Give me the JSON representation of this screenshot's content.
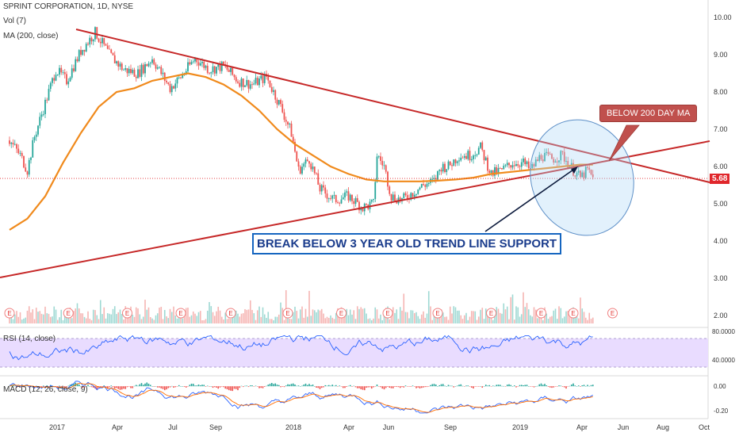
{
  "header": {
    "symbol_line": "SPRINT CORPORATION, 1D, NYSE",
    "vol_label": "Vol (7)",
    "ma_label": "MA (200, close)",
    "rsi_label": "RSI (14, close)",
    "macd_label": "MACD (12, 26, close, 9)"
  },
  "annotations": {
    "trendline_box": "BREAK BELOW 3 YEAR OLD TREND LINE SUPPORT",
    "ma_callout": "BELOW 200 DAY MA",
    "price_tag": "5.68"
  },
  "colors": {
    "up": "#26a69a",
    "down": "#ef5350",
    "ma": "#f08a1c",
    "trendline": "#c62828",
    "rsi_band": "#e9dcff",
    "rsi_line": "#2962ff",
    "annotation": "#1565c0"
  },
  "chart_data": {
    "type": "candlestick",
    "price_axis": {
      "ticks": [
        "10.00",
        "9.00",
        "8.00",
        "7.00",
        "6.00",
        "5.00",
        "4.00",
        "3.00",
        "2.00"
      ],
      "ylim": [
        1.85,
        10.2
      ]
    },
    "x_axis": {
      "ticks": [
        "2017",
        "Apr",
        "Jul",
        "Sep",
        "2018",
        "Apr",
        "Jun",
        "Sep",
        "2019",
        "Apr",
        "Jun",
        "Aug",
        "Oct"
      ]
    },
    "last_price": 5.68,
    "price_path": [
      [
        0,
        6.7
      ],
      [
        6,
        6.3
      ],
      [
        10,
        5.9
      ],
      [
        14,
        6.8
      ],
      [
        20,
        7.7
      ],
      [
        26,
        8.6
      ],
      [
        32,
        8.3
      ],
      [
        40,
        9.1
      ],
      [
        48,
        9.6
      ],
      [
        56,
        9.0
      ],
      [
        64,
        8.6
      ],
      [
        72,
        8.5
      ],
      [
        80,
        8.9
      ],
      [
        90,
        8.1
      ],
      [
        96,
        8.4
      ],
      [
        104,
        8.9
      ],
      [
        112,
        8.6
      ],
      [
        120,
        8.7
      ],
      [
        128,
        8.3
      ],
      [
        136,
        8.2
      ],
      [
        144,
        8.4
      ],
      [
        152,
        7.6
      ],
      [
        158,
        6.9
      ],
      [
        162,
        5.9
      ],
      [
        168,
        6.2
      ],
      [
        174,
        5.4
      ],
      [
        182,
        5.1
      ],
      [
        190,
        5.2
      ],
      [
        198,
        4.9
      ],
      [
        204,
        5.0
      ],
      [
        206,
        6.3
      ],
      [
        210,
        6.0
      ],
      [
        214,
        5.2
      ],
      [
        220,
        5.1
      ],
      [
        226,
        5.3
      ],
      [
        232,
        5.5
      ],
      [
        238,
        5.6
      ],
      [
        242,
        6.0
      ],
      [
        246,
        6.0
      ],
      [
        252,
        6.3
      ],
      [
        258,
        6.3
      ],
      [
        264,
        6.5
      ],
      [
        270,
        5.8
      ],
      [
        276,
        5.9
      ],
      [
        282,
        6.1
      ],
      [
        288,
        6.1
      ],
      [
        292,
        5.9
      ],
      [
        298,
        6.3
      ],
      [
        304,
        6.2
      ],
      [
        310,
        6.3
      ],
      [
        316,
        5.9
      ],
      [
        320,
        5.7
      ],
      [
        324,
        5.9
      ],
      [
        327,
        5.68
      ]
    ],
    "ma200_path": [
      [
        0,
        4.3
      ],
      [
        10,
        4.6
      ],
      [
        20,
        5.2
      ],
      [
        30,
        6.1
      ],
      [
        40,
        6.9
      ],
      [
        50,
        7.6
      ],
      [
        60,
        8.0
      ],
      [
        70,
        8.1
      ],
      [
        80,
        8.3
      ],
      [
        90,
        8.4
      ],
      [
        100,
        8.5
      ],
      [
        110,
        8.4
      ],
      [
        120,
        8.2
      ],
      [
        130,
        7.9
      ],
      [
        140,
        7.5
      ],
      [
        150,
        7.0
      ],
      [
        160,
        6.6
      ],
      [
        170,
        6.3
      ],
      [
        180,
        6.0
      ],
      [
        190,
        5.8
      ],
      [
        200,
        5.65
      ],
      [
        210,
        5.6
      ],
      [
        220,
        5.6
      ],
      [
        230,
        5.6
      ],
      [
        240,
        5.62
      ],
      [
        250,
        5.65
      ],
      [
        260,
        5.7
      ],
      [
        270,
        5.8
      ],
      [
        280,
        5.85
      ],
      [
        290,
        5.9
      ],
      [
        300,
        5.95
      ],
      [
        310,
        6.0
      ],
      [
        320,
        6.05
      ],
      [
        327,
        6.05
      ]
    ],
    "rsi": {
      "ylim": [
        20,
        80
      ],
      "ticks": [
        "80.0000",
        "40.0000"
      ],
      "band": [
        30,
        70
      ]
    },
    "macd": {
      "ylim": [
        -0.24,
        0.06
      ],
      "ticks": [
        "0.00",
        "-0.20"
      ]
    },
    "earnings_marker": "E",
    "earnings_days": [
      0,
      33,
      66,
      96,
      124,
      156,
      186,
      212,
      240,
      270,
      298,
      316,
      338
    ]
  }
}
